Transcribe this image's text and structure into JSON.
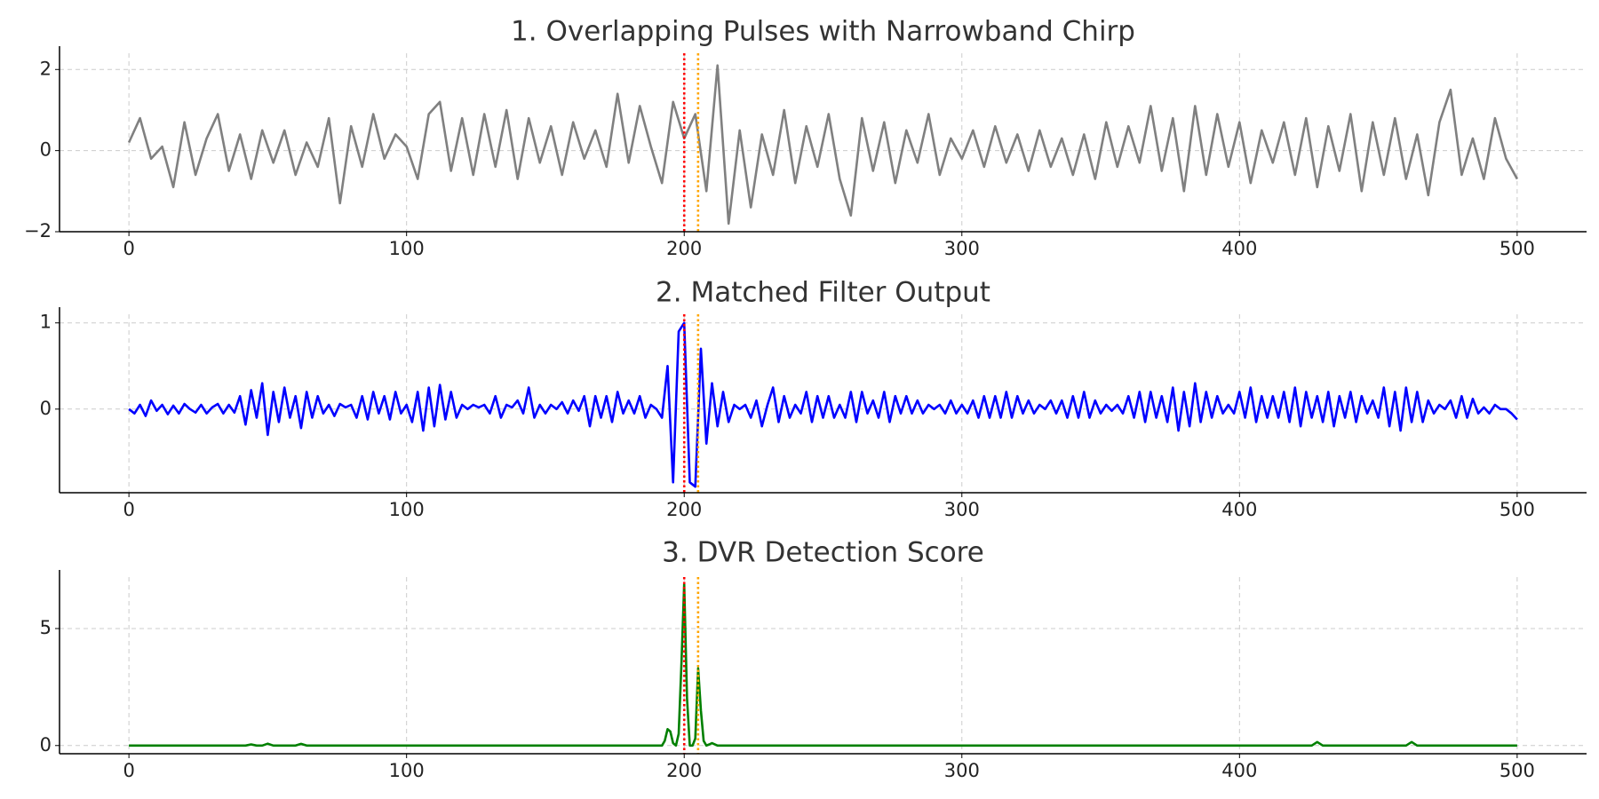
{
  "chart_data": [
    {
      "type": "line",
      "title": "1. Overlapping Pulses with Narrowband Chirp",
      "color": "#808080",
      "x": [
        0,
        4,
        8,
        12,
        16,
        20,
        24,
        28,
        32,
        36,
        40,
        44,
        48,
        52,
        56,
        60,
        64,
        68,
        72,
        76,
        80,
        84,
        88,
        92,
        96,
        100,
        104,
        108,
        112,
        116,
        120,
        124,
        128,
        132,
        136,
        140,
        144,
        148,
        152,
        156,
        160,
        164,
        168,
        172,
        176,
        180,
        184,
        188,
        192,
        196,
        200,
        204,
        208,
        212,
        216,
        220,
        224,
        228,
        232,
        236,
        240,
        244,
        248,
        252,
        256,
        260,
        264,
        268,
        272,
        276,
        280,
        284,
        288,
        292,
        296,
        300,
        304,
        308,
        312,
        316,
        320,
        324,
        328,
        332,
        336,
        340,
        344,
        348,
        352,
        356,
        360,
        364,
        368,
        372,
        376,
        380,
        384,
        388,
        392,
        396,
        400,
        404,
        408,
        412,
        416,
        420,
        424,
        428,
        432,
        436,
        440,
        444,
        448,
        452,
        456,
        460,
        464,
        468,
        472,
        476,
        480,
        484,
        488,
        492,
        496,
        500
      ],
      "values": [
        0.2,
        0.8,
        -0.2,
        0.1,
        -0.9,
        0.7,
        -0.6,
        0.3,
        0.9,
        -0.5,
        0.4,
        -0.7,
        0.5,
        -0.3,
        0.5,
        -0.6,
        0.2,
        -0.4,
        0.8,
        -1.3,
        0.6,
        -0.4,
        0.9,
        -0.2,
        0.4,
        0.1,
        -0.7,
        0.9,
        1.2,
        -0.5,
        0.8,
        -0.6,
        0.9,
        -0.4,
        1.0,
        -0.7,
        0.8,
        -0.3,
        0.6,
        -0.6,
        0.7,
        -0.2,
        0.5,
        -0.4,
        1.4,
        -0.3,
        1.1,
        0.1,
        -0.8,
        1.2,
        0.3,
        0.9,
        -1.0,
        2.1,
        -1.8,
        0.5,
        -1.4,
        0.4,
        -0.6,
        1.0,
        -0.8,
        0.6,
        -0.4,
        0.9,
        -0.7,
        -1.6,
        0.8,
        -0.5,
        0.7,
        -0.8,
        0.5,
        -0.3,
        0.9,
        -0.6,
        0.3,
        -0.2,
        0.5,
        -0.4,
        0.6,
        -0.3,
        0.4,
        -0.5,
        0.5,
        -0.4,
        0.3,
        -0.6,
        0.4,
        -0.7,
        0.7,
        -0.4,
        0.6,
        -0.3,
        1.1,
        -0.5,
        0.8,
        -1.0,
        1.1,
        -0.6,
        0.9,
        -0.4,
        0.7,
        -0.8,
        0.5,
        -0.3,
        0.7,
        -0.6,
        0.8,
        -0.9,
        0.6,
        -0.5,
        0.9,
        -1.0,
        0.7,
        -0.6,
        0.8,
        -0.7,
        0.4,
        -1.1,
        0.7,
        1.5,
        -0.6,
        0.3,
        -0.7,
        0.8,
        -0.2,
        -0.7
      ],
      "xlim": [
        -25,
        525
      ],
      "xticks": [
        0,
        100,
        200,
        300,
        400,
        500
      ],
      "ylim": [
        -2,
        2.4
      ],
      "yticks": [
        {
          "value": -2,
          "label": "−2"
        },
        0,
        2
      ],
      "grid": true,
      "vlines": [
        {
          "x": 200,
          "color": "red"
        },
        {
          "x": 205,
          "color": "orange"
        }
      ]
    },
    {
      "type": "line",
      "title": "2. Matched Filter Output",
      "color": "blue",
      "x": [
        0,
        2,
        4,
        6,
        8,
        10,
        12,
        14,
        16,
        18,
        20,
        22,
        24,
        26,
        28,
        30,
        32,
        34,
        36,
        38,
        40,
        42,
        44,
        46,
        48,
        50,
        52,
        54,
        56,
        58,
        60,
        62,
        64,
        66,
        68,
        70,
        72,
        74,
        76,
        78,
        80,
        82,
        84,
        86,
        88,
        90,
        92,
        94,
        96,
        98,
        100,
        102,
        104,
        106,
        108,
        110,
        112,
        114,
        116,
        118,
        120,
        122,
        124,
        126,
        128,
        130,
        132,
        134,
        136,
        138,
        140,
        142,
        144,
        146,
        148,
        150,
        152,
        154,
        156,
        158,
        160,
        162,
        164,
        166,
        168,
        170,
        172,
        174,
        176,
        178,
        180,
        182,
        184,
        186,
        188,
        190,
        192,
        194,
        196,
        198,
        200,
        202,
        204,
        206,
        208,
        210,
        212,
        214,
        216,
        218,
        220,
        222,
        224,
        226,
        228,
        230,
        232,
        234,
        236,
        238,
        240,
        242,
        244,
        246,
        248,
        250,
        252,
        254,
        256,
        258,
        260,
        262,
        264,
        266,
        268,
        270,
        272,
        274,
        276,
        278,
        280,
        282,
        284,
        286,
        288,
        290,
        292,
        294,
        296,
        298,
        300,
        302,
        304,
        306,
        308,
        310,
        312,
        314,
        316,
        318,
        320,
        322,
        324,
        326,
        328,
        330,
        332,
        334,
        336,
        338,
        340,
        342,
        344,
        346,
        348,
        350,
        352,
        354,
        356,
        358,
        360,
        362,
        364,
        366,
        368,
        370,
        372,
        374,
        376,
        378,
        380,
        382,
        384,
        386,
        388,
        390,
        392,
        394,
        396,
        398,
        400,
        402,
        404,
        406,
        408,
        410,
        412,
        414,
        416,
        418,
        420,
        422,
        424,
        426,
        428,
        430,
        432,
        434,
        436,
        438,
        440,
        442,
        444,
        446,
        448,
        450,
        452,
        454,
        456,
        458,
        460,
        462,
        464,
        466,
        468,
        470,
        472,
        474,
        476,
        478,
        480,
        482,
        484,
        486,
        488,
        490,
        492,
        494,
        496,
        498,
        500
      ],
      "values": [
        0.0,
        -0.05,
        0.05,
        -0.08,
        0.1,
        -0.02,
        0.05,
        -0.06,
        0.04,
        -0.05,
        0.06,
        0.0,
        -0.04,
        0.05,
        -0.05,
        0.02,
        0.06,
        -0.05,
        0.05,
        -0.04,
        0.15,
        -0.18,
        0.22,
        -0.1,
        0.3,
        -0.3,
        0.2,
        -0.15,
        0.25,
        -0.1,
        0.15,
        -0.22,
        0.2,
        -0.1,
        0.15,
        -0.05,
        0.05,
        -0.08,
        0.06,
        0.02,
        0.05,
        -0.1,
        0.15,
        -0.12,
        0.2,
        -0.05,
        0.15,
        -0.12,
        0.2,
        -0.05,
        0.05,
        -0.15,
        0.2,
        -0.25,
        0.25,
        -0.2,
        0.28,
        -0.12,
        0.2,
        -0.1,
        0.05,
        0.0,
        0.05,
        0.02,
        0.05,
        -0.05,
        0.15,
        -0.1,
        0.05,
        0.02,
        0.1,
        -0.05,
        0.25,
        -0.1,
        0.05,
        -0.05,
        0.05,
        0.0,
        0.08,
        -0.05,
        0.1,
        -0.02,
        0.15,
        -0.2,
        0.15,
        -0.1,
        0.15,
        -0.15,
        0.2,
        -0.05,
        0.1,
        -0.05,
        0.15,
        -0.1,
        0.05,
        0.0,
        -0.1,
        0.5,
        -0.85,
        0.9,
        1.0,
        -0.85,
        -0.9,
        0.7,
        -0.4,
        0.3,
        -0.2,
        0.2,
        -0.15,
        0.05,
        0.0,
        0.05,
        -0.1,
        0.1,
        -0.2,
        0.05,
        0.25,
        -0.15,
        0.15,
        -0.1,
        0.05,
        -0.05,
        0.2,
        -0.15,
        0.15,
        -0.1,
        0.15,
        -0.1,
        0.05,
        -0.1,
        0.2,
        -0.15,
        0.2,
        -0.05,
        0.1,
        -0.1,
        0.2,
        -0.15,
        0.15,
        -0.05,
        0.15,
        -0.05,
        0.1,
        -0.05,
        0.05,
        0.0,
        0.05,
        -0.05,
        0.1,
        -0.05,
        0.05,
        -0.05,
        0.1,
        -0.1,
        0.15,
        -0.1,
        0.15,
        -0.1,
        0.2,
        -0.1,
        0.15,
        -0.05,
        0.1,
        -0.05,
        0.05,
        0.0,
        0.1,
        -0.05,
        0.1,
        -0.1,
        0.15,
        -0.1,
        0.2,
        -0.1,
        0.1,
        -0.05,
        0.05,
        -0.02,
        0.05,
        -0.05,
        0.15,
        -0.1,
        0.2,
        -0.15,
        0.2,
        -0.1,
        0.15,
        -0.15,
        0.25,
        -0.25,
        0.2,
        -0.2,
        0.3,
        -0.15,
        0.2,
        -0.1,
        0.15,
        -0.05,
        0.05,
        -0.05,
        0.2,
        -0.1,
        0.25,
        -0.15,
        0.15,
        -0.1,
        0.15,
        -0.1,
        0.2,
        -0.15,
        0.25,
        -0.2,
        0.2,
        -0.1,
        0.15,
        -0.15,
        0.2,
        -0.2,
        0.15,
        -0.1,
        0.2,
        -0.15,
        0.15,
        -0.05,
        0.1,
        -0.1,
        0.25,
        -0.2,
        0.2,
        -0.25,
        0.25,
        -0.15,
        0.2,
        -0.15,
        0.1,
        -0.05,
        0.05,
        0.0,
        0.1,
        -0.1,
        0.15,
        -0.1,
        0.12,
        -0.05,
        0.02,
        -0.05,
        0.05,
        0.0,
        0.0,
        -0.05,
        -0.12
      ],
      "xlim": [
        -25,
        525
      ],
      "xticks": [
        0,
        100,
        200,
        300,
        400,
        500
      ],
      "ylim": [
        -0.97,
        1.1
      ],
      "yticks": [
        0,
        1
      ],
      "grid": true,
      "vlines": [
        {
          "x": 200,
          "color": "red"
        },
        {
          "x": 205,
          "color": "orange"
        }
      ]
    },
    {
      "type": "line",
      "title": "3. DVR Detection Score",
      "color": "green",
      "x": [
        0,
        42,
        44,
        46,
        48,
        50,
        52,
        60,
        62,
        64,
        192,
        193,
        194,
        195,
        196,
        197,
        198,
        199,
        200,
        201,
        202,
        203,
        204,
        205,
        206,
        207,
        208,
        209,
        210,
        212,
        426,
        428,
        430,
        460,
        462,
        464,
        466,
        500
      ],
      "values": [
        0,
        0,
        0.05,
        0,
        0,
        0.08,
        0,
        0,
        0.07,
        0,
        0,
        0.2,
        0.7,
        0.6,
        0.1,
        0,
        0.5,
        3.5,
        6.9,
        2.0,
        0,
        0,
        0.3,
        3.3,
        1.5,
        0.2,
        0,
        0.05,
        0.1,
        0,
        0,
        0.15,
        0,
        0,
        0.15,
        0,
        0,
        0
      ],
      "xlim": [
        -25,
        525
      ],
      "xticks": [
        0,
        100,
        200,
        300,
        400,
        500
      ],
      "ylim": [
        -0.35,
        7.2
      ],
      "yticks": [
        0,
        5
      ],
      "grid": true,
      "vlines": [
        {
          "x": 200,
          "color": "red"
        },
        {
          "x": 205,
          "color": "orange"
        }
      ]
    }
  ]
}
